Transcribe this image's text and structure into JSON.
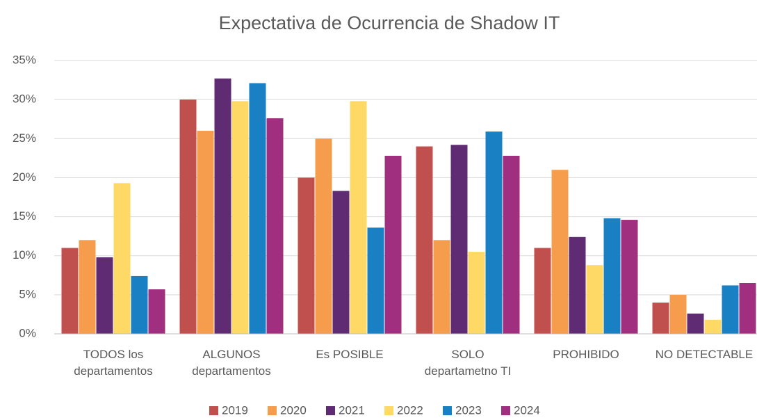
{
  "chart_data": {
    "type": "bar",
    "title": "Expectativa de Ocurrencia de Shadow IT",
    "categories": [
      "TODOS los\ndepartamentos",
      "ALGUNOS\ndepartamentos",
      "Es POSIBLE",
      "SOLO\ndepartametno TI",
      "PROHIBIDO",
      "NO DETECTABLE"
    ],
    "series": [
      {
        "name": "2019",
        "color": "#c0504d",
        "values": [
          11,
          30,
          20,
          24,
          11,
          4
        ]
      },
      {
        "name": "2020",
        "color": "#f59d4d",
        "values": [
          12,
          26,
          25,
          12,
          21,
          5
        ]
      },
      {
        "name": "2021",
        "color": "#5f2c73",
        "values": [
          9.8,
          32.7,
          18.3,
          24.2,
          12.4,
          2.6
        ]
      },
      {
        "name": "2022",
        "color": "#ffd966",
        "values": [
          19.3,
          29.8,
          29.8,
          10.5,
          8.8,
          1.8
        ]
      },
      {
        "name": "2023",
        "color": "#1a80c4",
        "values": [
          7.4,
          32.1,
          13.6,
          25.9,
          14.8,
          6.2
        ]
      },
      {
        "name": "2024",
        "color": "#a0307f",
        "values": [
          5.7,
          27.6,
          22.8,
          22.8,
          14.6,
          6.5
        ]
      }
    ],
    "ylim": [
      0,
      35
    ],
    "yticks": [
      {
        "value": 0,
        "label": "0%"
      },
      {
        "value": 5,
        "label": "5%"
      },
      {
        "value": 10,
        "label": "10%"
      },
      {
        "value": 15,
        "label": "15%"
      },
      {
        "value": 20,
        "label": "20%"
      },
      {
        "value": 25,
        "label": "25%"
      },
      {
        "value": 30,
        "label": "30%"
      },
      {
        "value": 35,
        "label": "35%"
      }
    ],
    "grid": true,
    "legend": "bottom"
  }
}
